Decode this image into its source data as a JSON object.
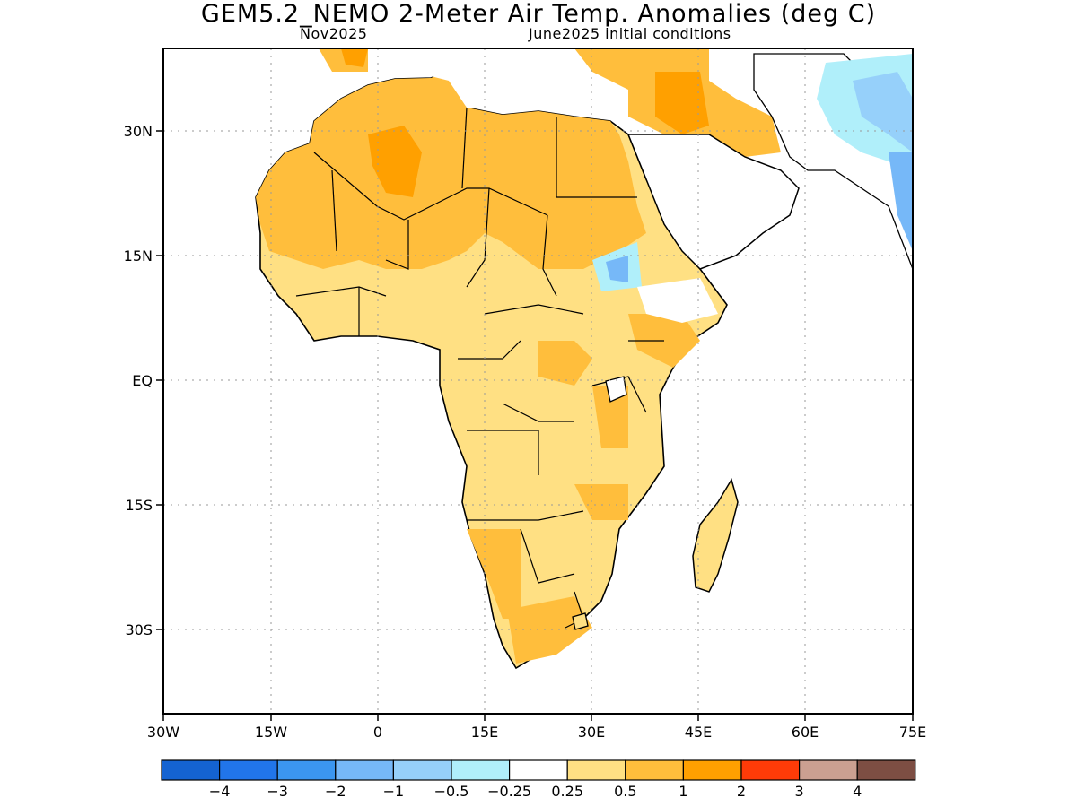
{
  "title": "GEM5.2_NEMO 2-Meter Air Temp. Anomalies (deg C)",
  "subtitle_left": "Nov2025",
  "subtitle_right": "June2025 initial conditions",
  "axes": {
    "lon_labels": [
      "30W",
      "15W",
      "0",
      "15E",
      "30E",
      "45E",
      "60E",
      "75E"
    ],
    "lat_labels": [
      "30N",
      "15N",
      "EQ",
      "15S",
      "30S"
    ]
  },
  "colorbar": {
    "colors": [
      "#1463d2",
      "#2175ea",
      "#3b96f0",
      "#76b8f8",
      "#96d0fa",
      "#b0effa",
      "#ffffff",
      "#ffe083",
      "#ffbe3c",
      "#ffa000",
      "#ff3b08",
      "#cba091",
      "#7d4e43"
    ],
    "labels": [
      "−4",
      "−3",
      "−2",
      "−1",
      "−0.5",
      "−0.25",
      "0.25",
      "0.5",
      "1",
      "2",
      "3",
      "4"
    ]
  }
}
